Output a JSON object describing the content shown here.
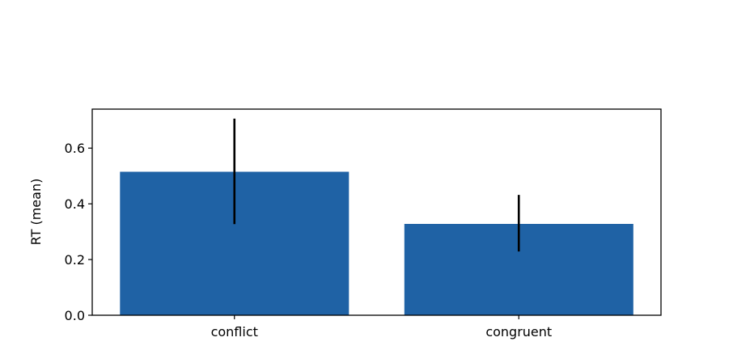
{
  "chart_data": {
    "type": "bar",
    "categories": [
      "conflict",
      "congruent"
    ],
    "values": [
      0.515,
      0.328
    ],
    "error_low": [
      0.327,
      0.229
    ],
    "error_high": [
      0.706,
      0.432
    ],
    "title": "",
    "xlabel": "",
    "ylabel": "RT (mean)",
    "ylim": [
      0,
      0.74
    ],
    "yticks": [
      0.0,
      0.2,
      0.4,
      0.6
    ],
    "ytick_labels": [
      "0.0",
      "0.2",
      "0.4",
      "0.6"
    ],
    "grid": false,
    "bar_color": "#1f62a5",
    "error_color": "#000000"
  }
}
